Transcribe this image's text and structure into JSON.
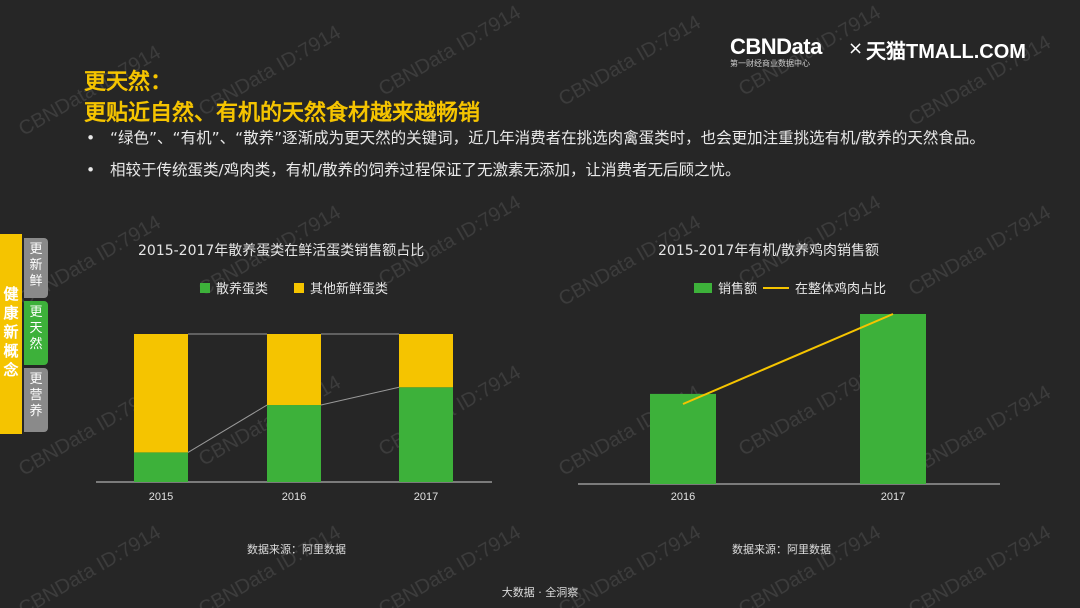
{
  "watermark": "CBNData ID:7914",
  "logo": {
    "brand": "CBNData",
    "subtitle": "第一财经商业数据中心",
    "times": "×",
    "partner": "天猫TMALL.COM"
  },
  "heading": {
    "line1": "更天然：",
    "line2": "更贴近自然、有机的天然食材越来越畅销"
  },
  "bullets": [
    "“绿色”、“有机”、“散养”逐渐成为更天然的关键词，近几年消费者在挑选肉禽蛋类时，也会更加注重挑选有机/散养的天然食品。",
    "相较于传统蛋类/鸡肉类，有机/散养的饲养过程保证了无激素无添加，让消费者无后顾之忧。"
  ],
  "bullet_marker": "•",
  "sidebar": {
    "main": "健康新概念",
    "tabs": [
      "更新鲜",
      "更天然",
      "更营养"
    ]
  },
  "colors": {
    "green": "#3db13a",
    "yellow": "#f5c400",
    "background": "#262626"
  },
  "chart_data": [
    {
      "type": "bar",
      "stacked": true,
      "percent": true,
      "title": "2015-2017年散养蛋类在鲜活蛋类销售额占比",
      "categories": [
        "2015",
        "2016",
        "2017"
      ],
      "series": [
        {
          "name": "散养蛋类",
          "color": "#3db13a",
          "values": [
            0.2,
            0.52,
            0.64
          ]
        },
        {
          "name": "其他新鲜蛋类",
          "color": "#f5c400",
          "values": [
            0.8,
            0.48,
            0.36
          ]
        }
      ],
      "grid": false,
      "legend": "top-center",
      "source": "数据来源：阿里数据"
    },
    {
      "type": "bar",
      "title": "2015-2017年有机/散养鸡肉销售额",
      "categories": [
        "2016",
        "2017"
      ],
      "series": [
        {
          "name": "销售额",
          "color": "#3db13a",
          "kind": "bar",
          "values": [
            0.53,
            1.0
          ]
        },
        {
          "name": "在整体鸡肉占比",
          "color": "#f5c400",
          "kind": "line",
          "values": [
            0.55,
            1.0
          ]
        }
      ],
      "grid": false,
      "legend": "top-center",
      "source": "数据来源：阿里数据"
    }
  ],
  "footer": "大数据 · 全洞察"
}
